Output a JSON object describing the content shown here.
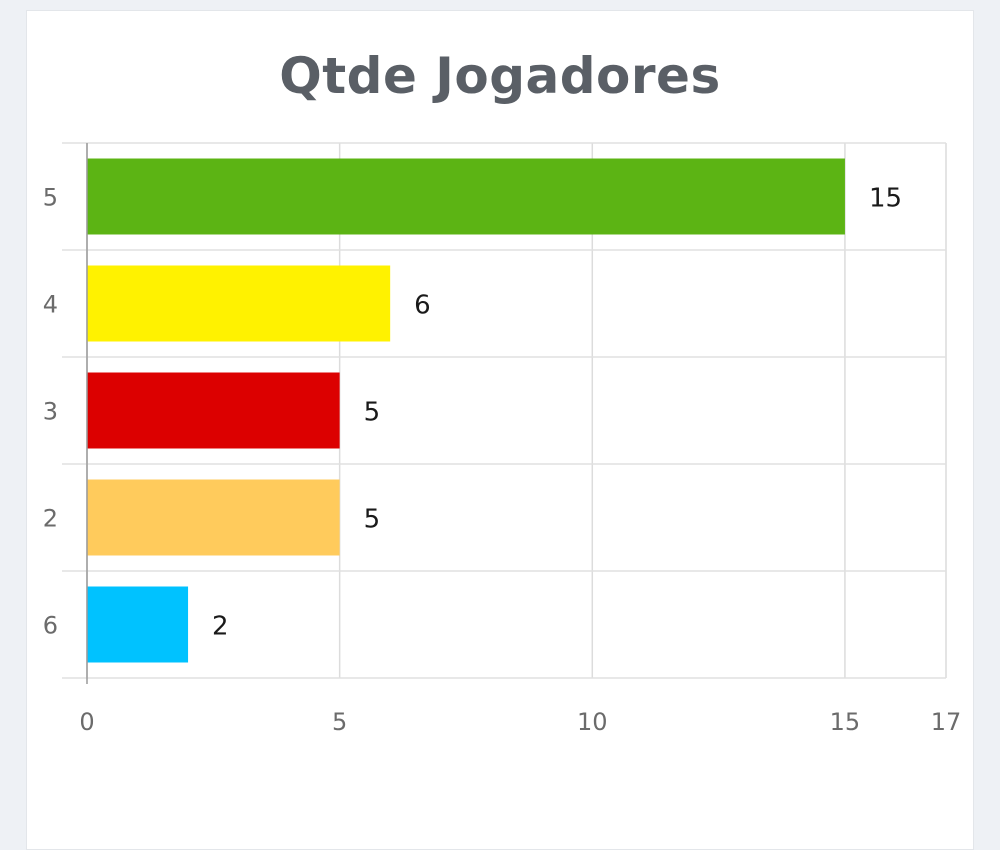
{
  "chart_data": {
    "type": "bar",
    "orientation": "horizontal",
    "title": "Qtde Jogadores",
    "categories": [
      "5",
      "4",
      "3",
      "2",
      "6"
    ],
    "values": [
      15,
      6,
      5,
      5,
      2
    ],
    "colors": [
      "#5cb414",
      "#fff200",
      "#dc0000",
      "#ffcb5c",
      "#00c2ff"
    ],
    "xlim": [
      0,
      17
    ],
    "xticks": [
      "0",
      "5",
      "10",
      "15",
      "17"
    ],
    "xtick_values": [
      0,
      5,
      10,
      15,
      17
    ],
    "grid": true,
    "legend": "none",
    "xlabel": "",
    "ylabel": ""
  }
}
